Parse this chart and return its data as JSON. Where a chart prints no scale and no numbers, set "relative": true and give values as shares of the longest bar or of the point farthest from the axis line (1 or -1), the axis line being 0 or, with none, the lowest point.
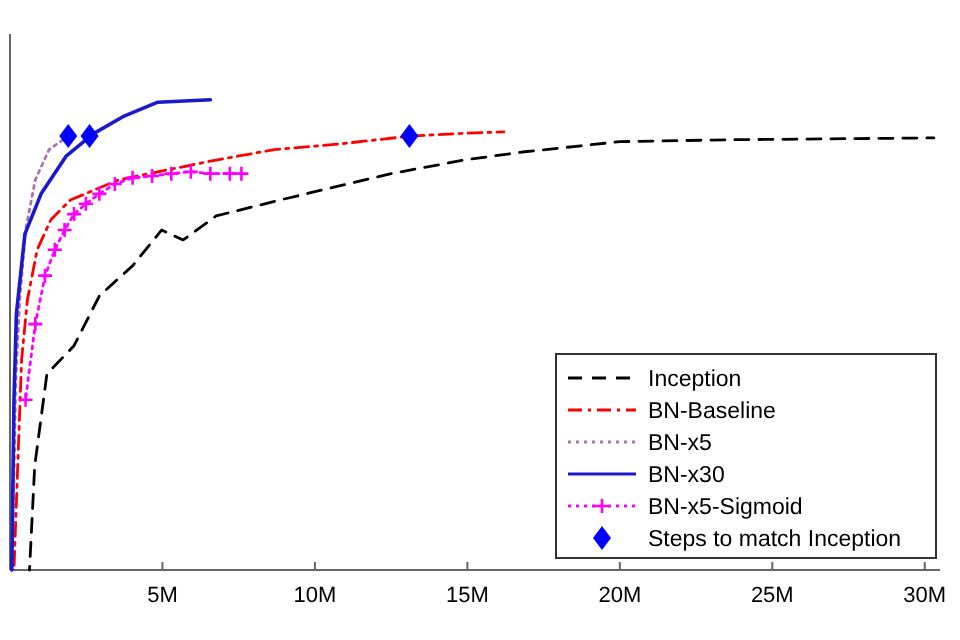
{
  "chart_data": {
    "type": "line",
    "relative": true,
    "xlim": [
      0,
      30500000
    ],
    "xticks": [
      {
        "value": 5000000,
        "label": "5M"
      },
      {
        "value": 10000000,
        "label": "10M"
      },
      {
        "value": 15000000,
        "label": "15M"
      },
      {
        "value": 20000000,
        "label": "20M"
      },
      {
        "value": 25000000,
        "label": "25M"
      },
      {
        "value": 30000000,
        "label": "30M"
      }
    ],
    "legend": "bottom right",
    "grid": false,
    "series": [
      {
        "name": "Inception",
        "color": "#000000",
        "line_style": "dashed",
        "marker": "none",
        "x": [
          640000,
          810000,
          1210000,
          2100000,
          2930000,
          4020000,
          4970000,
          5680000,
          6760000,
          8860000,
          12500000,
          14900000,
          16800000,
          20000000,
          23500000,
          30300000
        ],
        "values": [
          0,
          0.221,
          0.417,
          0.477,
          0.583,
          0.647,
          0.723,
          0.702,
          0.753,
          0.787,
          0.843,
          0.872,
          0.889,
          0.911,
          0.915,
          0.919
        ]
      },
      {
        "name": "BN-Baseline",
        "color": "#ff0000",
        "line_style": "dashdot",
        "marker": "none",
        "x": [
          130000,
          260000,
          380000,
          570000,
          890000,
          1340000,
          1980000,
          3570000,
          6760000,
          8670000,
          10780000,
          13140000,
          14600000,
          16200000
        ],
        "values": [
          0,
          0.234,
          0.447,
          0.574,
          0.681,
          0.745,
          0.787,
          0.83,
          0.872,
          0.894,
          0.906,
          0.923,
          0.928,
          0.932
        ]
      },
      {
        "name": "BN-x5",
        "color": "#b070b0",
        "line_style": "dotted",
        "marker": "none",
        "x": [
          60000,
          130000,
          190000,
          320000,
          510000,
          830000,
          1280000,
          1910000
        ],
        "values": [
          0,
          0.191,
          0.404,
          0.574,
          0.723,
          0.83,
          0.894,
          0.923
        ]
      },
      {
        "name": "BN-x30",
        "color": "#1a1acc",
        "line_style": "solid",
        "marker": "none",
        "x": [
          60000,
          130000,
          210000,
          490000,
          1020000,
          1850000,
          2740000,
          3760000,
          4850000,
          6570000
        ],
        "values": [
          0,
          0.362,
          0.545,
          0.715,
          0.8,
          0.881,
          0.928,
          0.966,
          0.995,
          1
        ]
      },
      {
        "name": "BN-x5-Sigmoid",
        "color": "#ff00ff",
        "line_style": "dotted",
        "marker": "cross",
        "x": [
          510000,
          830000,
          1150000,
          1470000,
          1790000,
          2100000,
          2490000,
          2930000,
          3440000,
          4020000,
          4660000,
          5290000,
          5930000,
          6570000,
          7210000,
          7590000
        ],
        "values": [
          0.362,
          0.523,
          0.626,
          0.681,
          0.723,
          0.757,
          0.779,
          0.8,
          0.821,
          0.834,
          0.838,
          0.843,
          0.847,
          0.843,
          0.843,
          0.843
        ]
      },
      {
        "name": "Steps to match Inception",
        "type": "scatter",
        "color": "#0000ff",
        "marker": "diamond",
        "x": [
          1910000,
          2610000,
          13100000
        ],
        "values": [
          0.923,
          0.923,
          0.923
        ]
      }
    ]
  }
}
